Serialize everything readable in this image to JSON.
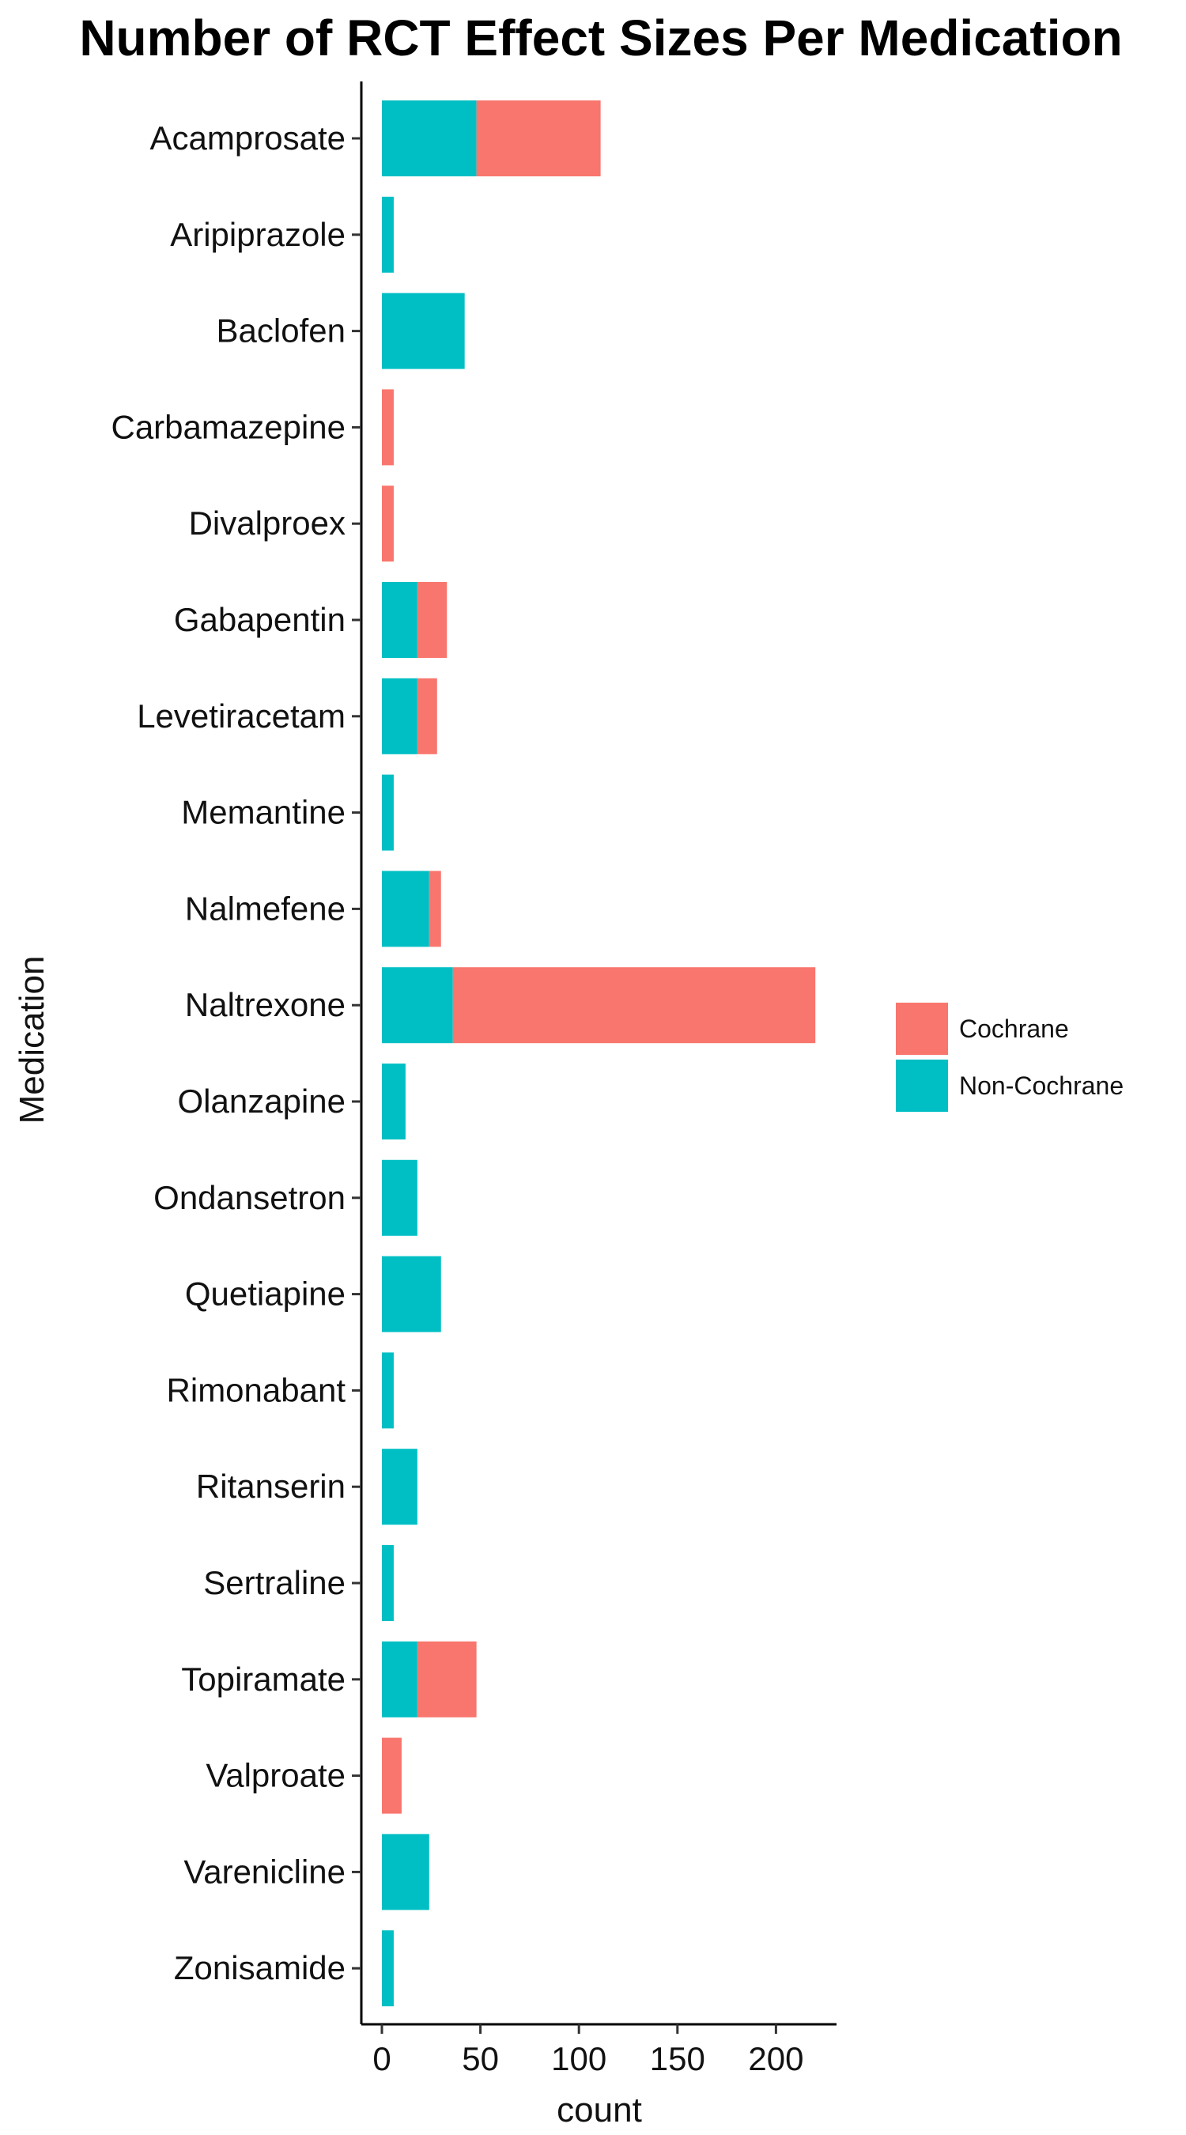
{
  "chart_data": {
    "type": "bar",
    "orientation": "horizontal",
    "stacked": true,
    "title": "Number of RCT Effect Sizes Per Medication",
    "xlabel": "count",
    "ylabel": "Medication",
    "xlim": [
      -10,
      230
    ],
    "xticks": [
      "0",
      "50",
      "100",
      "150",
      "200"
    ],
    "categories": [
      "Acamprosate",
      "Aripiprazole",
      "Baclofen",
      "Carbamazepine",
      "Divalproex",
      "Gabapentin",
      "Levetiracetam",
      "Memantine",
      "Nalmefene",
      "Naltrexone",
      "Olanzapine",
      "Ondansetron",
      "Quetiapine",
      "Rimonabant",
      "Ritanserin",
      "Sertraline",
      "Topiramate",
      "Valproate",
      "Varenicline",
      "Zonisamide"
    ],
    "series": [
      {
        "name": "Non-Cochrane",
        "color": "#00BFC4",
        "values": [
          48,
          6,
          42,
          0,
          0,
          18,
          18,
          6,
          24,
          36,
          12,
          18,
          30,
          6,
          18,
          6,
          18,
          0,
          24,
          6
        ]
      },
      {
        "name": "Cochrane",
        "color": "#F8766D",
        "values": [
          63,
          0,
          0,
          6,
          6,
          15,
          10,
          0,
          6,
          184,
          0,
          0,
          0,
          0,
          0,
          0,
          30,
          10,
          0,
          0
        ]
      }
    ],
    "legend": {
      "position": "right",
      "order": [
        "Cochrane",
        "Non-Cochrane"
      ]
    },
    "grid": false
  }
}
